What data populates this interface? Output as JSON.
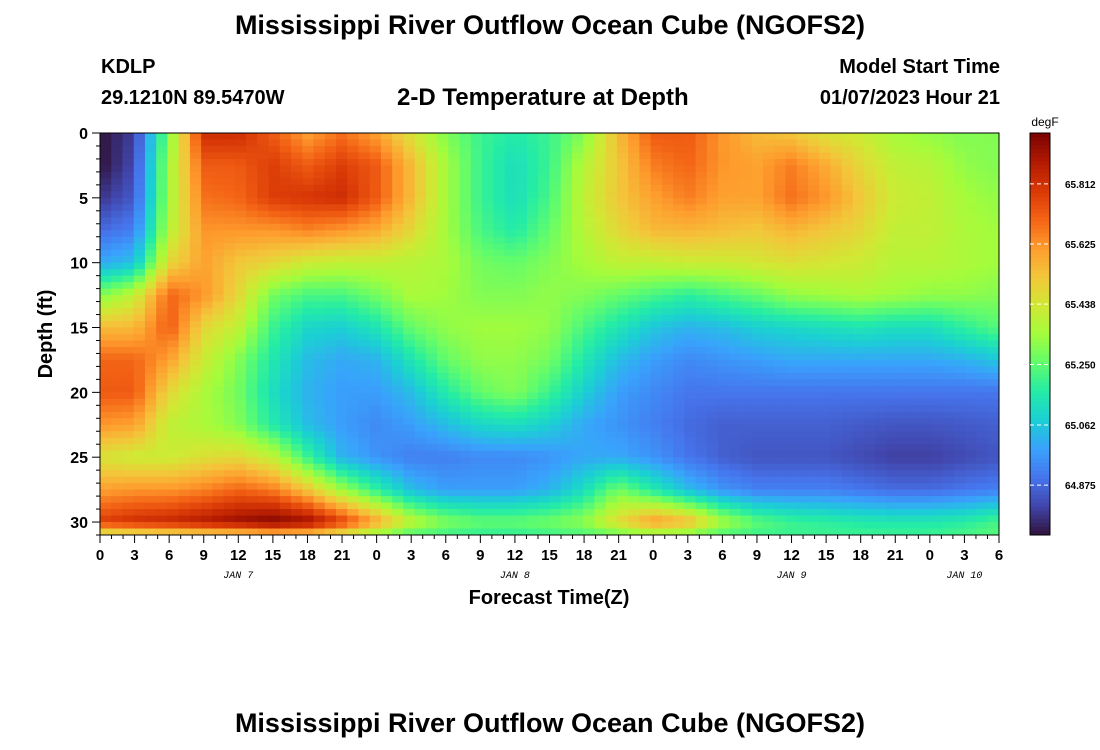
{
  "header": {
    "title": "Mississippi River Outflow Ocean Cube (NGOFS2)",
    "station": "KDLP",
    "coords": "29.1210N  89.5470W",
    "subtitle": "2-D Temperature at Depth",
    "model_start_label": "Model Start Time",
    "model_start_value": "01/07/2023 Hour 21"
  },
  "footer": {
    "title": "Mississippi River Outflow Ocean Cube (NGOFS2)"
  },
  "chart_data": {
    "type": "heatmap",
    "title": "2-D Temperature at Depth",
    "xlabel": "Forecast Time(Z)",
    "ylabel": "Depth (ft)",
    "unit": "degF",
    "x_tick_labels": [
      "0",
      "3",
      "6",
      "9",
      "12",
      "15",
      "18",
      "21",
      "0",
      "3",
      "6",
      "9",
      "12",
      "15",
      "18",
      "21",
      "0",
      "3",
      "6",
      "9",
      "12",
      "15",
      "18",
      "21",
      "0",
      "3",
      "6"
    ],
    "date_labels": [
      {
        "label": "JAN 7",
        "hour": 12
      },
      {
        "label": "JAN 8",
        "hour": 36
      },
      {
        "label": "JAN 9",
        "hour": 60
      },
      {
        "label": "JAN 10",
        "hour": 75
      }
    ],
    "x_range_hours": [
      0,
      78
    ],
    "y_ticks": [
      0,
      5,
      10,
      15,
      20,
      25,
      30
    ],
    "y_range_ft": [
      0,
      31
    ],
    "colorbar_ticks": [
      65.812,
      65.625,
      65.438,
      65.25,
      65.062,
      64.875
    ],
    "colorbar_range": [
      64.72,
      65.97
    ],
    "colors": {
      "colormap": [
        "#30123b",
        "#4145ab",
        "#4675ed",
        "#39a2fc",
        "#1bcfd4",
        "#24eca6",
        "#61fc6c",
        "#a4fc3b",
        "#d1e834",
        "#f3c63a",
        "#fe9b2d",
        "#f36315",
        "#d93806",
        "#b11901",
        "#7a0402"
      ]
    },
    "grid": {
      "hours": [
        0,
        3,
        6,
        9,
        12,
        15,
        18,
        21,
        24,
        27,
        30,
        33,
        36,
        39,
        42,
        45,
        48,
        51,
        54,
        57,
        60,
        63,
        66,
        69,
        72,
        75,
        78
      ],
      "depths_ft": [
        0,
        2.5,
        5,
        7.5,
        10,
        12.5,
        15,
        17.5,
        20,
        22.5,
        25,
        27.5,
        30,
        31
      ],
      "values": [
        [
          64.72,
          64.8,
          65.3,
          65.82,
          65.82,
          65.72,
          65.6,
          65.68,
          65.6,
          65.45,
          65.3,
          65.2,
          65.16,
          65.2,
          65.3,
          65.55,
          65.72,
          65.72,
          65.62,
          65.55,
          65.52,
          65.45,
          65.42,
          65.35,
          65.32,
          65.3,
          65.3
        ],
        [
          64.72,
          64.82,
          65.35,
          65.72,
          65.72,
          65.78,
          65.72,
          65.78,
          65.72,
          65.55,
          65.35,
          65.2,
          65.12,
          65.2,
          65.38,
          65.52,
          65.66,
          65.7,
          65.62,
          65.6,
          65.66,
          65.58,
          65.48,
          65.4,
          65.38,
          65.32,
          65.3
        ],
        [
          64.78,
          64.85,
          65.35,
          65.68,
          65.7,
          65.78,
          65.8,
          65.82,
          65.72,
          65.55,
          65.35,
          65.2,
          65.12,
          65.22,
          65.4,
          65.52,
          65.6,
          65.66,
          65.6,
          65.6,
          65.68,
          65.62,
          65.52,
          65.42,
          65.4,
          65.35,
          65.32
        ],
        [
          64.88,
          64.92,
          65.38,
          65.62,
          65.62,
          65.62,
          65.65,
          65.62,
          65.58,
          65.48,
          65.35,
          65.22,
          65.16,
          65.26,
          65.38,
          65.48,
          65.55,
          65.56,
          65.54,
          65.52,
          65.56,
          65.52,
          65.48,
          65.4,
          65.4,
          65.36,
          65.34
        ],
        [
          65.0,
          65.05,
          65.48,
          65.6,
          65.52,
          65.48,
          65.42,
          65.4,
          65.4,
          65.38,
          65.36,
          65.28,
          65.26,
          65.3,
          65.35,
          65.4,
          65.4,
          65.42,
          65.42,
          65.44,
          65.46,
          65.44,
          65.42,
          65.38,
          65.38,
          65.36,
          65.34
        ],
        [
          65.3,
          65.4,
          65.7,
          65.62,
          65.48,
          65.28,
          65.22,
          65.22,
          65.28,
          65.36,
          65.34,
          65.3,
          65.3,
          65.32,
          65.3,
          65.26,
          65.22,
          65.18,
          65.22,
          65.26,
          65.32,
          65.34,
          65.36,
          65.34,
          65.32,
          65.32,
          65.3
        ],
        [
          65.55,
          65.55,
          65.72,
          65.48,
          65.4,
          65.2,
          65.1,
          65.08,
          65.14,
          65.26,
          65.32,
          65.34,
          65.34,
          65.32,
          65.22,
          65.14,
          65.06,
          65.02,
          65.04,
          65.08,
          65.1,
          65.12,
          65.14,
          65.12,
          65.12,
          65.18,
          65.24
        ],
        [
          65.7,
          65.7,
          65.6,
          65.42,
          65.3,
          65.15,
          65.04,
          65.0,
          65.02,
          65.14,
          65.26,
          65.32,
          65.32,
          65.28,
          65.15,
          65.04,
          64.98,
          64.94,
          64.96,
          64.98,
          65.0,
          65.0,
          65.0,
          65.0,
          65.0,
          65.02,
          65.06
        ],
        [
          65.72,
          65.72,
          65.48,
          65.36,
          65.28,
          65.12,
          65.02,
          64.98,
          64.98,
          65.04,
          65.16,
          65.26,
          65.3,
          65.2,
          65.08,
          64.98,
          64.94,
          64.9,
          64.9,
          64.9,
          64.9,
          64.9,
          64.9,
          64.9,
          64.9,
          64.9,
          64.9
        ],
        [
          65.62,
          65.6,
          65.4,
          65.36,
          65.3,
          65.16,
          65.04,
          64.98,
          64.94,
          64.98,
          65.04,
          65.1,
          65.12,
          65.08,
          65.0,
          64.96,
          64.92,
          64.88,
          64.86,
          64.86,
          64.86,
          64.86,
          64.85,
          64.84,
          64.84,
          64.85,
          64.86
        ],
        [
          65.45,
          65.42,
          65.42,
          65.46,
          65.48,
          65.4,
          65.2,
          65.02,
          64.96,
          64.92,
          64.92,
          64.94,
          64.94,
          64.96,
          65.0,
          65.0,
          64.96,
          64.9,
          64.86,
          64.84,
          64.84,
          64.84,
          64.82,
          64.8,
          64.8,
          64.82,
          64.84
        ],
        [
          65.6,
          65.62,
          65.62,
          65.65,
          65.7,
          65.66,
          65.52,
          65.34,
          65.18,
          65.04,
          64.98,
          64.98,
          64.98,
          65.02,
          65.12,
          65.28,
          65.16,
          65.04,
          64.96,
          64.92,
          64.92,
          64.92,
          64.9,
          64.88,
          64.88,
          64.9,
          64.92
        ],
        [
          65.78,
          65.82,
          65.84,
          65.88,
          65.92,
          65.96,
          65.92,
          65.78,
          65.6,
          65.4,
          65.3,
          65.26,
          65.26,
          65.28,
          65.32,
          65.48,
          65.62,
          65.56,
          65.36,
          65.25,
          65.2,
          65.18,
          65.16,
          65.15,
          65.15,
          65.17,
          65.22
        ],
        [
          65.4,
          65.42,
          65.44,
          65.46,
          65.48,
          65.52,
          65.5,
          65.42,
          65.3,
          65.22,
          65.2,
          65.18,
          65.18,
          65.2,
          65.22,
          65.26,
          65.3,
          65.28,
          65.22,
          65.2,
          65.2,
          65.2,
          65.2,
          65.2,
          65.2,
          65.22,
          65.24
        ]
      ]
    }
  }
}
